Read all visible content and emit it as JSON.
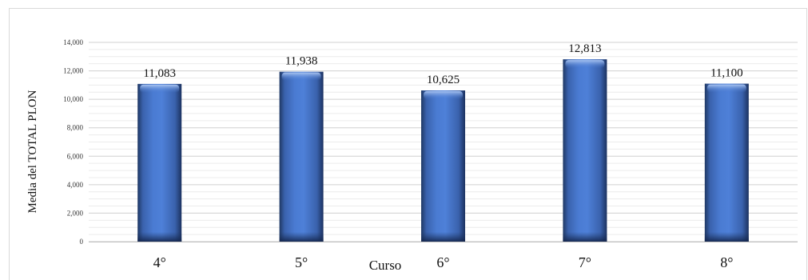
{
  "chart_data": {
    "type": "bar",
    "categories": [
      "4°",
      "5°",
      "6°",
      "7°",
      "8°"
    ],
    "values": [
      11083,
      11938,
      10625,
      12813,
      11100
    ],
    "value_labels": [
      "11,083",
      "11,938",
      "10,625",
      "12,813",
      "11,100"
    ],
    "xlabel": "Curso",
    "ylabel": "Media del TOTAL PLON",
    "ylim": [
      0,
      14000
    ],
    "yticks": [
      0,
      2000,
      4000,
      6000,
      8000,
      10000,
      12000,
      14000
    ],
    "ytick_labels": [
      "0",
      "2,000",
      "4,000",
      "6,000",
      "8,000",
      "10,000",
      "12,000",
      "14,000"
    ],
    "grid": true,
    "legend": "none",
    "colors": {
      "bar": "#4472c4",
      "bar_dark": "#1f3864",
      "bar_light": "#8fb0e8",
      "grid": "#d9d9d9"
    }
  }
}
